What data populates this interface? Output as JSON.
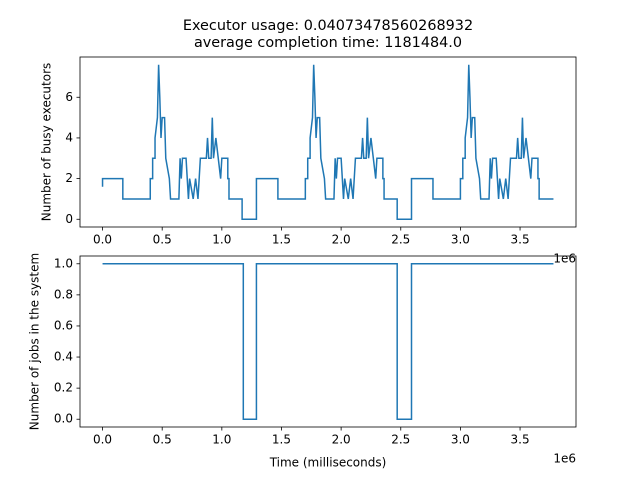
{
  "chart_data": [
    {
      "type": "line",
      "title": "Executor usage: 0.04073478560268932",
      "subtitle": "average completion time: 1181484.0",
      "y_label": "Number of busy executors",
      "x_offset_label": "1e6",
      "xlim": [
        -189000,
        3969000
      ],
      "ylim": [
        -0.38,
        7.98
      ],
      "xticks": [
        {
          "value": 0,
          "label": "0.0"
        },
        {
          "value": 500000,
          "label": "0.5"
        },
        {
          "value": 1000000,
          "label": "1.0"
        },
        {
          "value": 1500000,
          "label": "1.5"
        },
        {
          "value": 2000000,
          "label": "2.0"
        },
        {
          "value": 2500000,
          "label": "2.5"
        },
        {
          "value": 3000000,
          "label": "3.0"
        },
        {
          "value": 3500000,
          "label": "3.5"
        }
      ],
      "yticks": [
        0,
        2,
        4,
        6
      ],
      "series": [
        {
          "color": "#1f77b4",
          "x": [
            0,
            0,
            170000,
            170000,
            400000,
            400000,
            420000,
            420000,
            440000,
            440000,
            460000,
            470000,
            480000,
            490000,
            500000,
            520000,
            530000,
            560000,
            570000,
            640000,
            650000,
            660000,
            670000,
            700000,
            710000,
            720000,
            730000,
            760000,
            780000,
            800000,
            820000,
            870000,
            880000,
            890000,
            910000,
            920000,
            930000,
            950000,
            970000,
            990000,
            1000000,
            1050000,
            1050000,
            1060000,
            1060000,
            1170000,
            1170000,
            1290000,
            1290000,
            1470000,
            1470000,
            1700000,
            1700000,
            1720000,
            1720000,
            1740000,
            1740000,
            1760000,
            1770000,
            1780000,
            1790000,
            1800000,
            1820000,
            1830000,
            1860000,
            1870000,
            1940000,
            1950000,
            1960000,
            1970000,
            2000000,
            2010000,
            2020000,
            2030000,
            2060000,
            2080000,
            2100000,
            2120000,
            2170000,
            2180000,
            2190000,
            2210000,
            2220000,
            2230000,
            2250000,
            2270000,
            2290000,
            2300000,
            2350000,
            2350000,
            2360000,
            2360000,
            2470000,
            2470000,
            2590000,
            2590000,
            2770000,
            2770000,
            3000000,
            3000000,
            3020000,
            3020000,
            3040000,
            3040000,
            3060000,
            3070000,
            3080000,
            3090000,
            3100000,
            3120000,
            3130000,
            3160000,
            3170000,
            3240000,
            3250000,
            3260000,
            3270000,
            3300000,
            3310000,
            3320000,
            3330000,
            3360000,
            3380000,
            3400000,
            3420000,
            3470000,
            3480000,
            3490000,
            3510000,
            3520000,
            3530000,
            3550000,
            3570000,
            3590000,
            3600000,
            3650000,
            3650000,
            3660000,
            3660000,
            3780000
          ],
          "values": [
            1.6,
            2,
            2,
            1,
            1,
            2,
            2,
            3,
            3,
            4,
            5,
            7.6,
            6,
            4,
            5,
            5,
            3,
            2,
            1,
            1,
            3,
            2,
            3,
            3,
            2,
            1,
            2,
            1,
            2,
            1,
            3,
            3,
            4,
            3,
            3,
            5,
            3,
            4,
            3,
            2,
            3,
            3,
            2,
            2,
            1,
            1,
            0,
            0,
            2,
            2,
            1,
            1,
            2,
            2,
            3,
            3,
            4,
            5,
            7.6,
            6,
            4,
            5,
            5,
            3,
            2,
            1,
            1,
            3,
            2,
            3,
            3,
            2,
            1,
            2,
            1,
            2,
            1,
            3,
            3,
            4,
            3,
            3,
            5,
            3,
            4,
            3,
            2,
            3,
            3,
            2,
            2,
            1,
            1,
            0,
            0,
            2,
            2,
            1,
            1,
            2,
            2,
            3,
            3,
            4,
            5,
            7.6,
            6,
            4,
            5,
            5,
            3,
            2,
            1,
            1,
            3,
            2,
            3,
            3,
            2,
            1,
            2,
            1,
            2,
            1,
            3,
            3,
            4,
            3,
            3,
            5,
            3,
            4,
            3,
            2,
            3,
            3,
            2,
            2,
            1,
            1
          ]
        }
      ]
    },
    {
      "type": "line",
      "x_label": "Time (milliseconds)",
      "y_label": "Number of jobs in the system",
      "x_offset_label": "1e6",
      "xlim": [
        -189000,
        3969000
      ],
      "ylim": [
        -0.05,
        1.05
      ],
      "xticks": [
        {
          "value": 0,
          "label": "0.0"
        },
        {
          "value": 500000,
          "label": "0.5"
        },
        {
          "value": 1000000,
          "label": "1.0"
        },
        {
          "value": 1500000,
          "label": "1.5"
        },
        {
          "value": 2000000,
          "label": "2.0"
        },
        {
          "value": 2500000,
          "label": "2.5"
        },
        {
          "value": 3000000,
          "label": "3.0"
        },
        {
          "value": 3500000,
          "label": "3.5"
        }
      ],
      "yticks": [
        {
          "value": 0,
          "label": "0.0"
        },
        0.2,
        0.4,
        0.6,
        0.8,
        {
          "value": 1,
          "label": "1.0"
        }
      ],
      "series": [
        {
          "color": "#1f77b4",
          "x": [
            0,
            1180000,
            1180000,
            1290000,
            1290000,
            2470000,
            2470000,
            2590000,
            2590000,
            3780000
          ],
          "values": [
            1,
            1,
            0,
            0,
            1,
            1,
            0,
            0,
            1,
            1
          ]
        }
      ]
    }
  ]
}
